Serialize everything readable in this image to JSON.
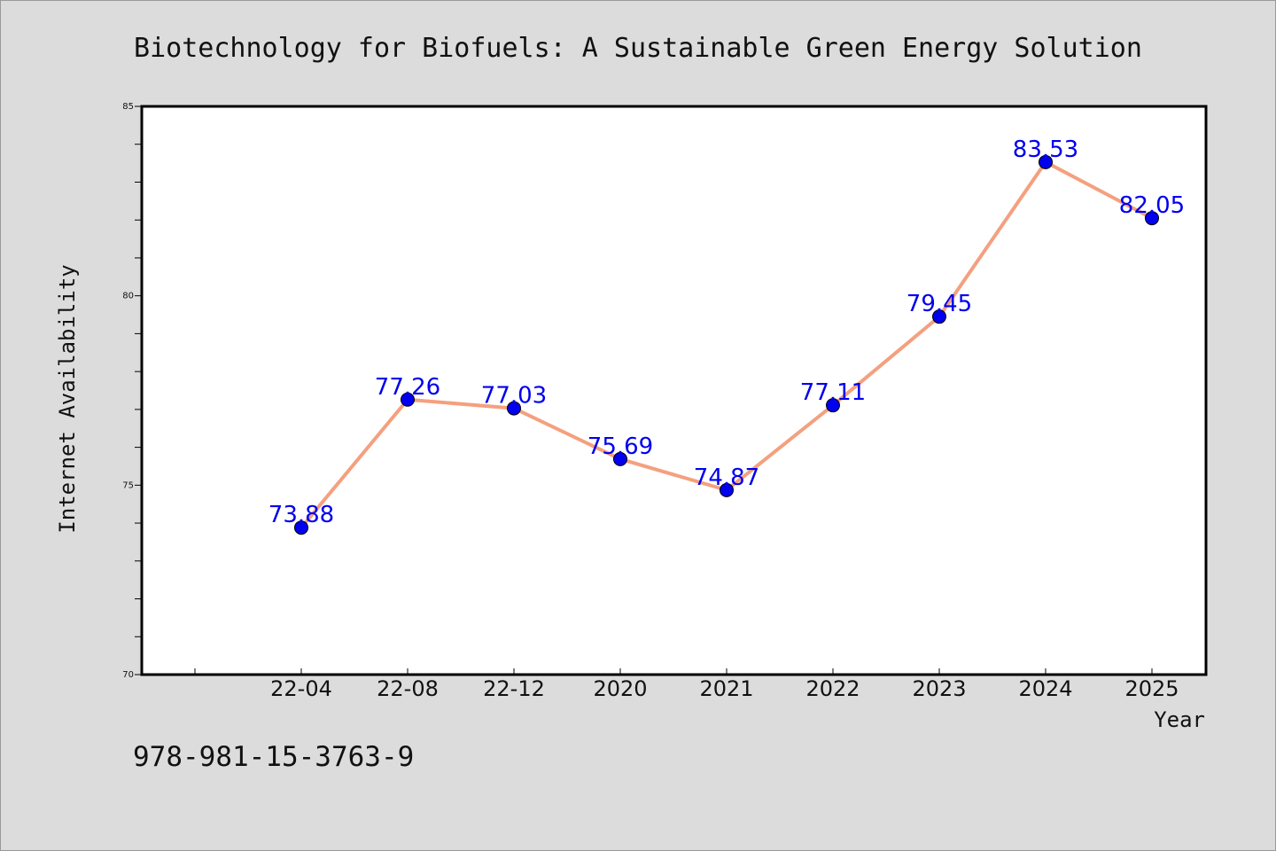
{
  "chart_data": {
    "type": "line",
    "title": "Biotechnology for Biofuels: A Sustainable Green Energy Solution",
    "xlabel": "Year",
    "ylabel": "Internet Availability",
    "categories": [
      "22-04",
      "22-08",
      "22-12",
      "2020",
      "2021",
      "2022",
      "2023",
      "2024",
      "2025"
    ],
    "series": [
      {
        "values": [
          73.88,
          77.26,
          77.03,
          75.69,
          74.87,
          77.11,
          79.45,
          83.53,
          82.05
        ],
        "labels": [
          "73.88",
          "77.26",
          "77.03",
          "75.69",
          "74.87",
          "77.11",
          "79.45",
          "83.53",
          "82.05"
        ]
      }
    ],
    "ylim": [
      70,
      85
    ],
    "yticks": [
      "70",
      "75",
      "80",
      "85"
    ],
    "grid": false,
    "line_color": "#f4a07f",
    "marker_color": "#0000ee",
    "label_color": "#0000ee"
  },
  "footer": {
    "text": "978-981-15-3763-9"
  }
}
